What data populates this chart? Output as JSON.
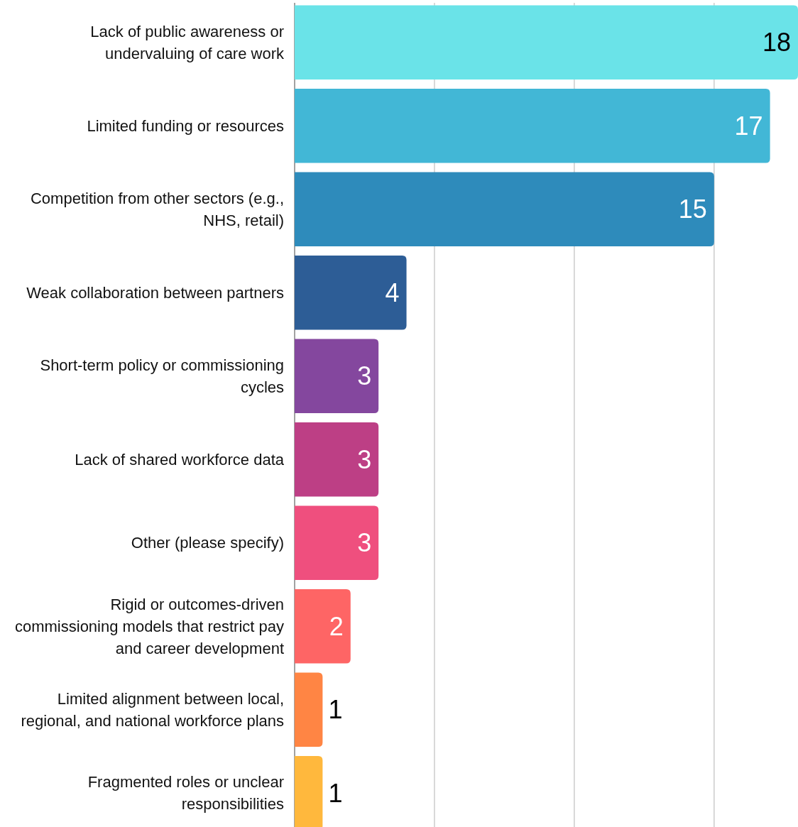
{
  "chart_data": {
    "type": "bar",
    "orientation": "horizontal",
    "categories": [
      "Lack of public awareness or undervaluing of care work",
      "Limited funding or resources",
      "Competition from other sectors (e.g., NHS, retail)",
      "Weak collaboration between partners",
      "Short-term policy or commissioning cycles",
      "Lack of shared workforce data",
      "Other (please specify)",
      "Rigid or outcomes-driven commissioning models that restrict pay and career development",
      "Limited alignment between local, regional, and national workforce plans",
      "Fragmented roles or unclear responsibilities"
    ],
    "values": [
      18,
      17,
      15,
      4,
      3,
      3,
      3,
      2,
      1,
      1
    ],
    "colors": [
      "#6ae3e8",
      "#42b7d6",
      "#2e8bbb",
      "#2d5d96",
      "#84479e",
      "#bd3f85",
      "#ef4f7e",
      "#fe6565",
      "#ff8544",
      "#ffb83d"
    ],
    "xlim": [
      0,
      18
    ],
    "xticks": [
      {
        "value": 5,
        "label": null
      },
      {
        "value": 10,
        "label": null
      },
      {
        "value": 15,
        "label": null
      }
    ],
    "grid": "x",
    "tick_labels": "y",
    "data_labels": true
  }
}
